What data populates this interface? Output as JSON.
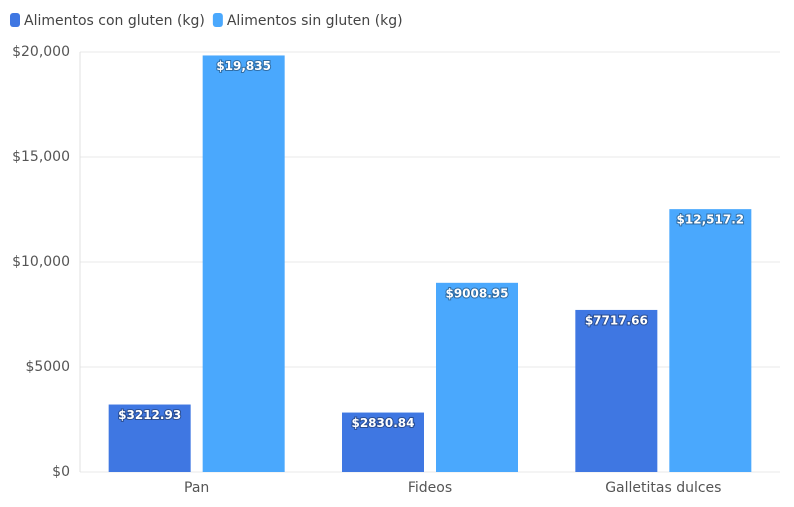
{
  "chart_data": {
    "type": "bar",
    "categories": [
      "Pan",
      "Fideos",
      "Galletitas dulces"
    ],
    "series": [
      {
        "name": "Alimentos con gluten (kg)",
        "color": "#3f77e2",
        "values": [
          3212.93,
          2830.84,
          7717.66
        ],
        "value_labels": [
          "$3212.93",
          "$2830.84",
          "$7717.66"
        ]
      },
      {
        "name": "Alimentos sin gluten (kg)",
        "color": "#4aa8fd",
        "values": [
          19835,
          9008.95,
          12517.2
        ],
        "value_labels": [
          "$19,835",
          "$9008.95",
          "$12,517.2"
        ]
      }
    ],
    "ylim": [
      0,
      20000
    ],
    "yticks": [
      {
        "value": 0,
        "label": "$0"
      },
      {
        "value": 5000,
        "label": "$5000"
      },
      {
        "value": 10000,
        "label": "$10,000"
      },
      {
        "value": 15000,
        "label": "$15,000"
      },
      {
        "value": 20000,
        "label": "$20,000"
      }
    ],
    "grid": true
  }
}
